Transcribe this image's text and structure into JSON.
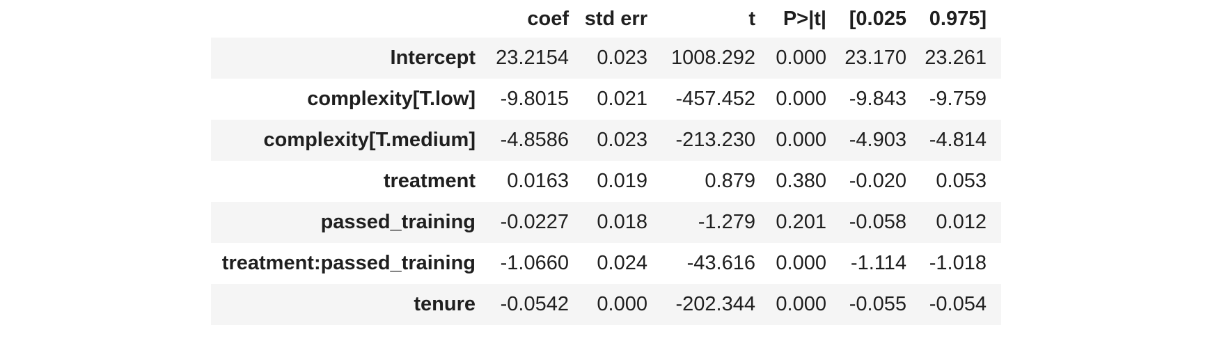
{
  "colors": {
    "background": "#ffffff",
    "row_stripe": "#f5f5f5",
    "text": "#1f1f1f"
  },
  "chart_data": {
    "type": "table",
    "description": "Regression (OLS) coefficient results table",
    "columns": [
      "",
      "coef",
      "std err",
      "t",
      "P>|t|",
      "[0.025",
      "0.975]"
    ],
    "rows": [
      {
        "label": "Intercept",
        "coef": "23.2154",
        "std_err": "0.023",
        "t": "1008.292",
        "p": "0.000",
        "ci_lower": "23.170",
        "ci_upper": "23.261"
      },
      {
        "label": "complexity[T.low]",
        "coef": "-9.8015",
        "std_err": "0.021",
        "t": "-457.452",
        "p": "0.000",
        "ci_lower": "-9.843",
        "ci_upper": "-9.759"
      },
      {
        "label": "complexity[T.medium]",
        "coef": "-4.8586",
        "std_err": "0.023",
        "t": "-213.230",
        "p": "0.000",
        "ci_lower": "-4.903",
        "ci_upper": "-4.814"
      },
      {
        "label": "treatment",
        "coef": "0.0163",
        "std_err": "0.019",
        "t": "0.879",
        "p": "0.380",
        "ci_lower": "-0.020",
        "ci_upper": "0.053"
      },
      {
        "label": "passed_training",
        "coef": "-0.0227",
        "std_err": "0.018",
        "t": "-1.279",
        "p": "0.201",
        "ci_lower": "-0.058",
        "ci_upper": "0.012"
      },
      {
        "label": "treatment:passed_training",
        "coef": "-1.0660",
        "std_err": "0.024",
        "t": "-43.616",
        "p": "0.000",
        "ci_lower": "-1.114",
        "ci_upper": "-1.018"
      },
      {
        "label": "tenure",
        "coef": "-0.0542",
        "std_err": "0.000",
        "t": "-202.344",
        "p": "0.000",
        "ci_lower": "-0.055",
        "ci_upper": "-0.054"
      }
    ]
  }
}
